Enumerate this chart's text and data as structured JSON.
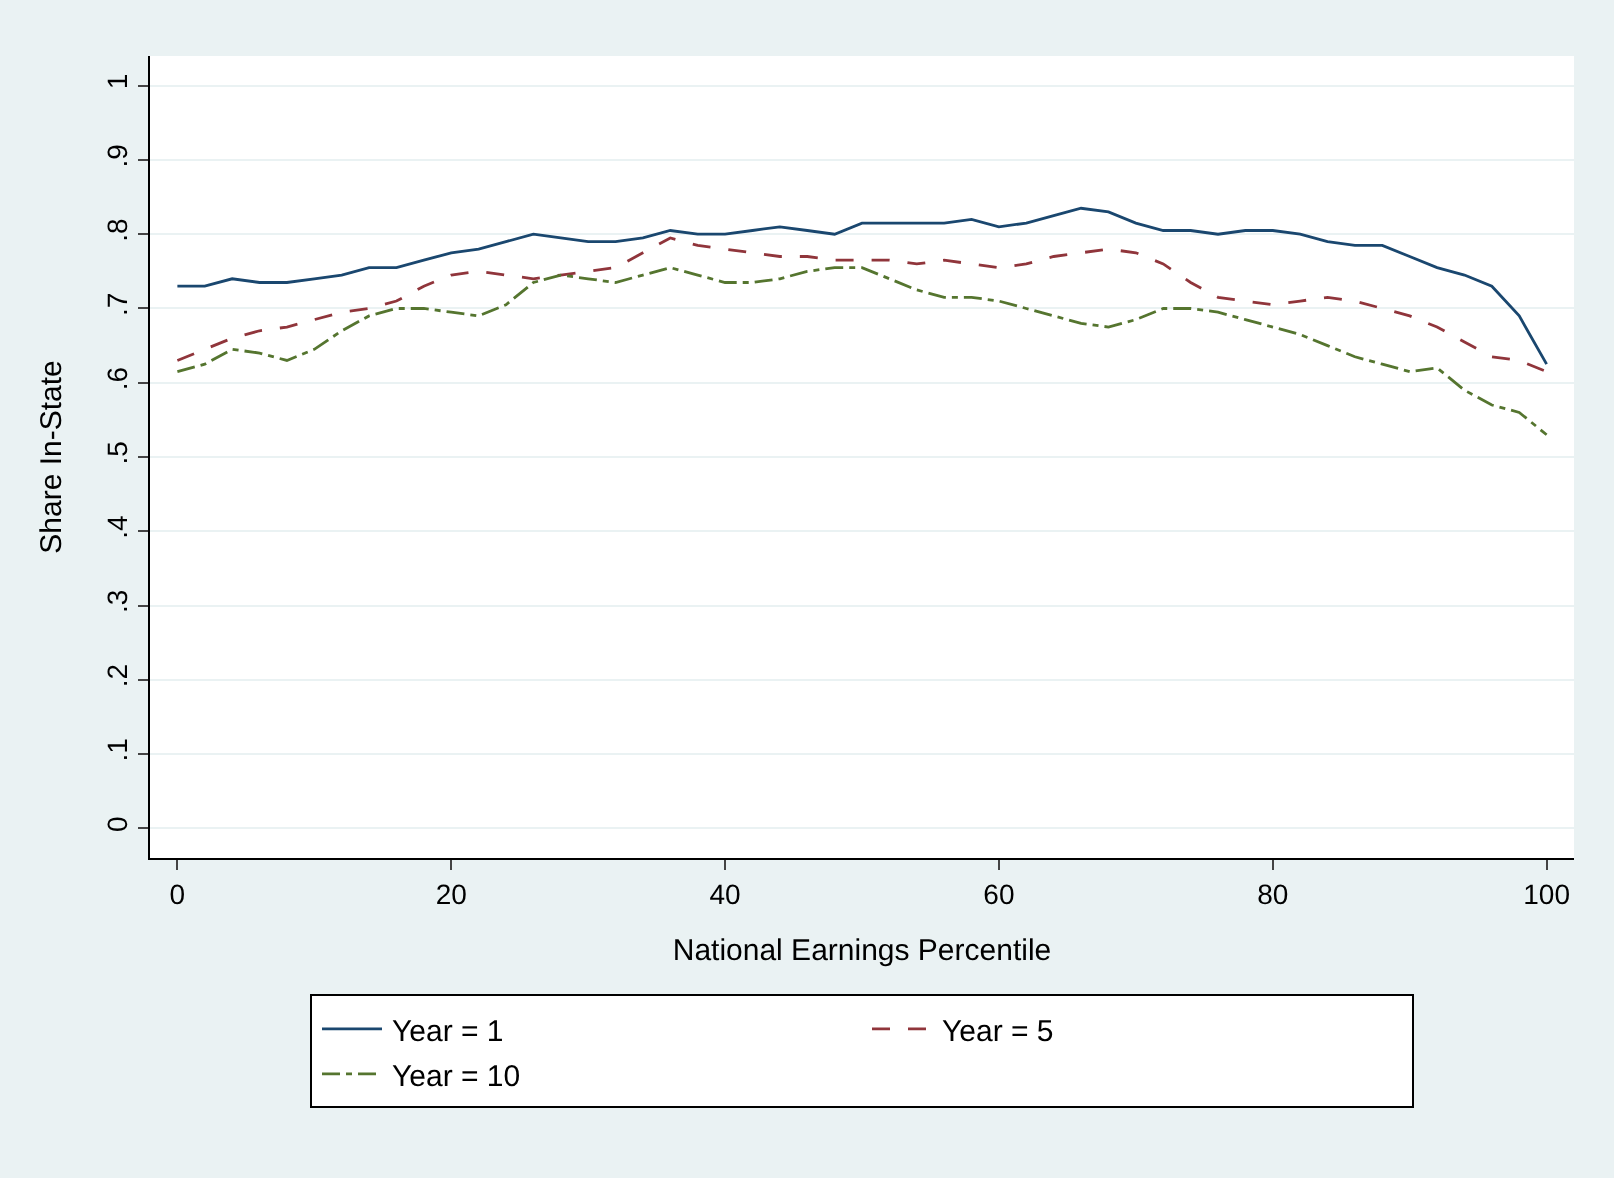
{
  "chart_data": {
    "type": "line",
    "xlabel": "National Earnings Percentile",
    "ylabel": "Share In-State",
    "x": [
      0,
      2,
      4,
      6,
      8,
      10,
      12,
      14,
      16,
      18,
      20,
      22,
      24,
      26,
      28,
      30,
      32,
      34,
      36,
      38,
      40,
      42,
      44,
      46,
      48,
      50,
      52,
      54,
      56,
      58,
      60,
      62,
      64,
      66,
      68,
      70,
      72,
      74,
      76,
      78,
      80,
      82,
      84,
      86,
      88,
      90,
      92,
      94,
      96,
      98,
      100
    ],
    "xlim": [
      -2,
      102
    ],
    "xticks": [
      0,
      20,
      40,
      60,
      80,
      100
    ],
    "ylim": [
      -0.04,
      1.04
    ],
    "yticks": [
      {
        "value": 0,
        "label": "0"
      },
      {
        "value": 0.1,
        "label": ".1"
      },
      {
        "value": 0.2,
        "label": ".2"
      },
      {
        "value": 0.3,
        "label": ".3"
      },
      {
        "value": 0.4,
        "label": ".4"
      },
      {
        "value": 0.5,
        "label": ".5"
      },
      {
        "value": 0.6,
        "label": ".6"
      },
      {
        "value": 0.7,
        "label": ".7"
      },
      {
        "value": 0.8,
        "label": ".8"
      },
      {
        "value": 0.9,
        "label": ".9"
      },
      {
        "value": 1,
        "label": "1"
      }
    ],
    "grid": "y",
    "legend": "bottom",
    "marker": "none",
    "series": [
      {
        "name": "Year = 1",
        "color": "#1a476f",
        "line_style": "solid",
        "values": [
          0.73,
          0.73,
          0.74,
          0.735,
          0.735,
          0.74,
          0.745,
          0.755,
          0.755,
          0.765,
          0.775,
          0.78,
          0.79,
          0.8,
          0.795,
          0.79,
          0.79,
          0.795,
          0.805,
          0.8,
          0.8,
          0.805,
          0.81,
          0.805,
          0.8,
          0.815,
          0.815,
          0.815,
          0.815,
          0.82,
          0.81,
          0.815,
          0.825,
          0.835,
          0.83,
          0.815,
          0.805,
          0.805,
          0.8,
          0.805,
          0.805,
          0.8,
          0.79,
          0.785,
          0.785,
          0.77,
          0.755,
          0.745,
          0.73,
          0.69,
          0.625
        ]
      },
      {
        "name": "Year = 5",
        "color": "#90353b",
        "line_style": "dashed",
        "values": [
          0.63,
          0.645,
          0.66,
          0.67,
          0.675,
          0.685,
          0.695,
          0.7,
          0.71,
          0.73,
          0.745,
          0.75,
          0.745,
          0.74,
          0.745,
          0.75,
          0.755,
          0.775,
          0.795,
          0.785,
          0.78,
          0.775,
          0.77,
          0.77,
          0.765,
          0.765,
          0.765,
          0.76,
          0.765,
          0.76,
          0.755,
          0.76,
          0.77,
          0.775,
          0.78,
          0.775,
          0.76,
          0.735,
          0.715,
          0.71,
          0.705,
          0.71,
          0.715,
          0.71,
          0.7,
          0.69,
          0.675,
          0.655,
          0.635,
          0.63,
          0.615
        ]
      },
      {
        "name": "Year = 10",
        "color": "#55752f",
        "line_style": "dashdot",
        "values": [
          0.615,
          0.625,
          0.645,
          0.64,
          0.63,
          0.645,
          0.67,
          0.69,
          0.7,
          0.7,
          0.695,
          0.69,
          0.705,
          0.735,
          0.745,
          0.74,
          0.735,
          0.745,
          0.755,
          0.745,
          0.735,
          0.735,
          0.74,
          0.75,
          0.755,
          0.755,
          0.74,
          0.725,
          0.715,
          0.715,
          0.71,
          0.7,
          0.69,
          0.68,
          0.675,
          0.685,
          0.7,
          0.7,
          0.695,
          0.685,
          0.675,
          0.665,
          0.65,
          0.635,
          0.625,
          0.615,
          0.62,
          0.59,
          0.57,
          0.56,
          0.53
        ]
      }
    ]
  }
}
